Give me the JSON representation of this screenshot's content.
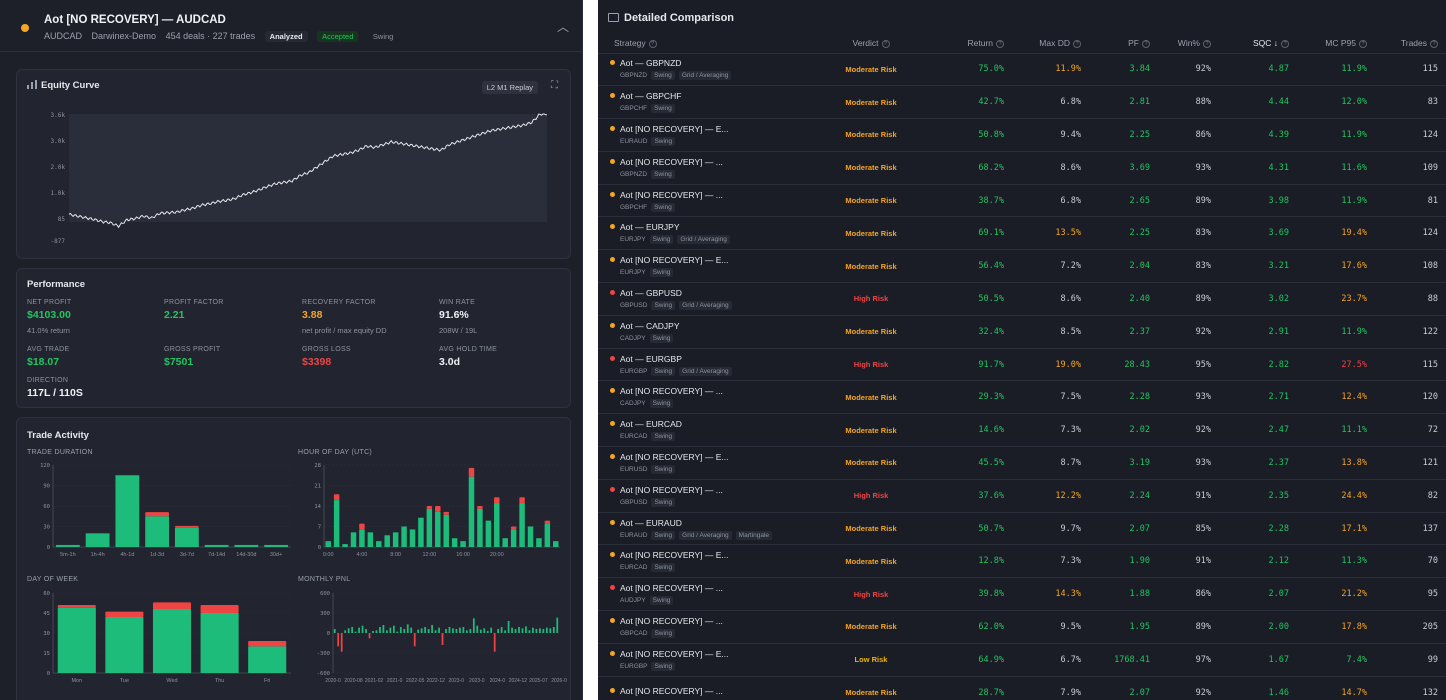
{
  "header": {
    "title": "Aot [NO RECOVERY] — AUDCAD",
    "symbol": "AUDCAD",
    "broker": "Darwinex-Demo",
    "deals_trades": "454 deals · 227 trades",
    "badge_analyzed": "Analyzed",
    "badge_accepted": "Accepted",
    "badge_style": "Swing",
    "status_color": "#f5a524"
  },
  "equity": {
    "title": "Equity Curve",
    "replay_label": "L2 M1 Replay",
    "y_ticks": [
      "3.6k",
      "3.0k",
      "2.0k",
      "1.0k",
      "85",
      "-877"
    ],
    "series": [
      0,
      -60,
      -120,
      -180,
      -260,
      -300,
      -420,
      -200,
      -150,
      -60,
      -130,
      40,
      60,
      80,
      160,
      220,
      330,
      380,
      460,
      500,
      560,
      700,
      780,
      880,
      1000,
      1100,
      1150,
      1200,
      1400,
      1500,
      1700,
      1900,
      2100,
      2150,
      2200,
      2300,
      2450,
      2400,
      2500,
      2600,
      2550,
      2500,
      2450,
      2400,
      2350,
      2300,
      2500,
      2600,
      2700,
      2800,
      2900,
      3000,
      3050,
      3100,
      3150,
      3200,
      3300,
      3600
    ]
  },
  "performance": {
    "title": "Performance",
    "net_profit": {
      "label": "NET PROFIT",
      "value": "$4103.00",
      "sub": "41.0% return"
    },
    "profit_factor": {
      "label": "PROFIT FACTOR",
      "value": "2.21"
    },
    "recovery_factor": {
      "label": "RECOVERY FACTOR",
      "value": "3.88",
      "sub": "net profit / max equity DD"
    },
    "win_rate": {
      "label": "WIN RATE",
      "value": "91.6%",
      "sub": "208W / 19L"
    },
    "avg_trade": {
      "label": "AVG TRADE",
      "value": "$18.07"
    },
    "gross_profit": {
      "label": "GROSS PROFIT",
      "value": "$7501"
    },
    "gross_loss": {
      "label": "GROSS LOSS",
      "value": "$3398"
    },
    "avg_hold": {
      "label": "AVG HOLD TIME",
      "value": "3.0d"
    },
    "direction": {
      "label": "DIRECTION",
      "value": "117L / 110S"
    }
  },
  "activity": {
    "title": "Trade Activity",
    "duration": {
      "title": "TRADE DURATION",
      "y_ticks": [
        "120",
        "90",
        "60",
        "30",
        "0"
      ],
      "ymax": 120,
      "categories": [
        "5m-1h",
        "1h-4h",
        "4h-1d",
        "1d-3d",
        "3d-7d",
        "7d-14d",
        "14d-30d",
        "30d+"
      ],
      "wins": [
        3,
        20,
        105,
        45,
        28,
        3,
        3,
        3
      ],
      "losses": [
        0,
        0,
        0,
        6,
        3,
        0,
        0,
        0
      ]
    },
    "hour": {
      "title": "HOUR OF DAY (UTC)",
      "y_ticks": [
        "28",
        "21",
        "14",
        "7",
        "0"
      ],
      "ymax": 28,
      "x_labels": [
        "0:00",
        "4:00",
        "8:00",
        "12:00",
        "16:00",
        "20:00"
      ],
      "wins": [
        2,
        16,
        1,
        5,
        6,
        5,
        2,
        4,
        5,
        7,
        6,
        10,
        13,
        12,
        11,
        3,
        2,
        24,
        13,
        9,
        15,
        3,
        6,
        15,
        7,
        3,
        8,
        2
      ],
      "losses": [
        0,
        2,
        0,
        0,
        2,
        0,
        0,
        0,
        0,
        0,
        0,
        0,
        1,
        2,
        1,
        0,
        0,
        3,
        1,
        0,
        2,
        0,
        1,
        2,
        0,
        0,
        1,
        0
      ]
    },
    "day": {
      "title": "DAY OF WEEK",
      "y_ticks": [
        "60",
        "45",
        "30",
        "15",
        "0"
      ],
      "ymax": 60,
      "categories": [
        "Mon",
        "Tue",
        "Wed",
        "Thu",
        "Fri"
      ],
      "wins": [
        49,
        42,
        48,
        45,
        20
      ],
      "losses": [
        2,
        4,
        5,
        6,
        4
      ]
    },
    "monthly": {
      "title": "MONTHLY PNL",
      "y_ticks": [
        "600",
        "300",
        "0",
        "-300",
        "-600"
      ],
      "x_labels": [
        "2020-0",
        "2020-08",
        "2021-02",
        "2021-0",
        "2022-05",
        "2022-12",
        "2023-0",
        "2023-0",
        "2024-0",
        "2024-12",
        "2025-07",
        "2026-0"
      ],
      "values": [
        60,
        -200,
        -280,
        40,
        70,
        90,
        20,
        80,
        110,
        60,
        -80,
        30,
        40,
        90,
        120,
        40,
        80,
        110,
        20,
        90,
        60,
        130,
        80,
        -200,
        50,
        70,
        90,
        60,
        120,
        40,
        80,
        -180,
        60,
        90,
        70,
        60,
        80,
        90,
        40,
        60,
        220,
        110,
        50,
        70,
        30,
        80,
        -280,
        60,
        90,
        40,
        180,
        80,
        60,
        90,
        70,
        100,
        40,
        80,
        60,
        70,
        60,
        80,
        70,
        90,
        230
      ]
    },
    "win_color": "#1ebc7b",
    "loss_color": "#ef4444"
  },
  "comparison": {
    "title": "Detailed Comparison",
    "headers": [
      "Strategy",
      "Verdict",
      "Return",
      "Max DD",
      "PF",
      "Win%",
      "SQC ↓",
      "MC P95",
      "Trades"
    ],
    "rows": [
      {
        "name": "Aot — GBPNZD",
        "sym": "GBPNZD",
        "tags": [
          "Swing",
          "Grid / Averaging"
        ],
        "dot": "#f5a524",
        "verdict": "Moderate Risk",
        "vcolor": "#f5a524",
        "ret": "75.0%",
        "dd": "11.9%",
        "ddc": "#f5a524",
        "pf": "3.84",
        "win": "92%",
        "sqc": "4.87",
        "mc": "11.9%",
        "mcc": "#22c55e",
        "trades": "115"
      },
      {
        "name": "Aot — GBPCHF",
        "sym": "GBPCHF",
        "tags": [
          "Swing"
        ],
        "dot": "#f5a524",
        "verdict": "Moderate Risk",
        "vcolor": "#f5a524",
        "ret": "42.7%",
        "dd": "6.8%",
        "ddc": "#c8ccd6",
        "pf": "2.81",
        "win": "88%",
        "sqc": "4.44",
        "mc": "12.0%",
        "mcc": "#22c55e",
        "trades": "83"
      },
      {
        "name": "Aot [NO RECOVERY] — E...",
        "sym": "EURAUD",
        "tags": [
          "Swing"
        ],
        "dot": "#f5a524",
        "verdict": "Moderate Risk",
        "vcolor": "#f5a524",
        "ret": "50.8%",
        "dd": "9.4%",
        "ddc": "#c8ccd6",
        "pf": "2.25",
        "win": "86%",
        "sqc": "4.39",
        "mc": "11.9%",
        "mcc": "#22c55e",
        "trades": "124"
      },
      {
        "name": "Aot [NO RECOVERY] — ...",
        "sym": "GBPNZD",
        "tags": [
          "Swing"
        ],
        "dot": "#f5a524",
        "verdict": "Moderate Risk",
        "vcolor": "#f5a524",
        "ret": "68.2%",
        "dd": "8.6%",
        "ddc": "#c8ccd6",
        "pf": "3.69",
        "win": "93%",
        "sqc": "4.31",
        "mc": "11.6%",
        "mcc": "#22c55e",
        "trades": "109"
      },
      {
        "name": "Aot [NO RECOVERY] — ...",
        "sym": "GBPCHF",
        "tags": [
          "Swing"
        ],
        "dot": "#f5a524",
        "verdict": "Moderate Risk",
        "vcolor": "#f5a524",
        "ret": "38.7%",
        "dd": "6.8%",
        "ddc": "#c8ccd6",
        "pf": "2.65",
        "win": "89%",
        "sqc": "3.98",
        "mc": "11.9%",
        "mcc": "#22c55e",
        "trades": "81"
      },
      {
        "name": "Aot — EURJPY",
        "sym": "EURJPY",
        "tags": [
          "Swing",
          "Grid / Averaging"
        ],
        "dot": "#f5a524",
        "verdict": "Moderate Risk",
        "vcolor": "#f5a524",
        "ret": "69.1%",
        "dd": "13.5%",
        "ddc": "#f5a524",
        "pf": "2.25",
        "win": "83%",
        "sqc": "3.69",
        "mc": "19.4%",
        "mcc": "#f5a524",
        "trades": "124"
      },
      {
        "name": "Aot [NO RECOVERY] — E...",
        "sym": "EURJPY",
        "tags": [
          "Swing"
        ],
        "dot": "#f5a524",
        "verdict": "Moderate Risk",
        "vcolor": "#f5a524",
        "ret": "56.4%",
        "dd": "7.2%",
        "ddc": "#c8ccd6",
        "pf": "2.04",
        "win": "83%",
        "sqc": "3.21",
        "mc": "17.6%",
        "mcc": "#f5a524",
        "trades": "108"
      },
      {
        "name": "Aot — GBPUSD",
        "sym": "GBPUSD",
        "tags": [
          "Swing",
          "Grid / Averaging"
        ],
        "dot": "#ef4444",
        "verdict": "High Risk",
        "vcolor": "#ef4444",
        "ret": "50.5%",
        "dd": "8.6%",
        "ddc": "#c8ccd6",
        "pf": "2.40",
        "win": "89%",
        "sqc": "3.02",
        "mc": "23.7%",
        "mcc": "#f5a524",
        "trades": "88"
      },
      {
        "name": "Aot — CADJPY",
        "sym": "CADJPY",
        "tags": [
          "Swing"
        ],
        "dot": "#f5a524",
        "verdict": "Moderate Risk",
        "vcolor": "#f5a524",
        "ret": "32.4%",
        "dd": "8.5%",
        "ddc": "#c8ccd6",
        "pf": "2.37",
        "win": "92%",
        "sqc": "2.91",
        "mc": "11.9%",
        "mcc": "#22c55e",
        "trades": "122"
      },
      {
        "name": "Aot — EURGBP",
        "sym": "EURGBP",
        "tags": [
          "Swing",
          "Grid / Averaging"
        ],
        "dot": "#ef4444",
        "verdict": "High Risk",
        "vcolor": "#ef4444",
        "ret": "91.7%",
        "dd": "19.0%",
        "ddc": "#f5a524",
        "pf": "28.43",
        "win": "95%",
        "sqc": "2.82",
        "mc": "27.5%",
        "mcc": "#ef4444",
        "trades": "115"
      },
      {
        "name": "Aot [NO RECOVERY] — ...",
        "sym": "CADJPY",
        "tags": [
          "Swing"
        ],
        "dot": "#f5a524",
        "verdict": "Moderate Risk",
        "vcolor": "#f5a524",
        "ret": "29.3%",
        "dd": "7.5%",
        "ddc": "#c8ccd6",
        "pf": "2.28",
        "win": "93%",
        "sqc": "2.71",
        "mc": "12.4%",
        "mcc": "#f5a524",
        "trades": "120"
      },
      {
        "name": "Aot — EURCAD",
        "sym": "EURCAD",
        "tags": [
          "Swing"
        ],
        "dot": "#f5a524",
        "verdict": "Moderate Risk",
        "vcolor": "#f5a524",
        "ret": "14.6%",
        "dd": "7.3%",
        "ddc": "#c8ccd6",
        "pf": "2.02",
        "win": "92%",
        "sqc": "2.47",
        "mc": "11.1%",
        "mcc": "#22c55e",
        "trades": "72"
      },
      {
        "name": "Aot [NO RECOVERY] — E...",
        "sym": "EURUSD",
        "tags": [
          "Swing"
        ],
        "dot": "#f5a524",
        "verdict": "Moderate Risk",
        "vcolor": "#f5a524",
        "ret": "45.5%",
        "dd": "8.7%",
        "ddc": "#c8ccd6",
        "pf": "3.19",
        "win": "93%",
        "sqc": "2.37",
        "mc": "13.8%",
        "mcc": "#f5a524",
        "trades": "121"
      },
      {
        "name": "Aot [NO RECOVERY] — ...",
        "sym": "GBPUSD",
        "tags": [
          "Swing"
        ],
        "dot": "#ef4444",
        "verdict": "High Risk",
        "vcolor": "#ef4444",
        "ret": "37.6%",
        "dd": "12.2%",
        "ddc": "#f5a524",
        "pf": "2.24",
        "win": "91%",
        "sqc": "2.35",
        "mc": "24.4%",
        "mcc": "#f5a524",
        "trades": "82"
      },
      {
        "name": "Aot — EURAUD",
        "sym": "EURAUD",
        "tags": [
          "Swing",
          "Grid / Averaging",
          "Martingale"
        ],
        "dot": "#f5a524",
        "verdict": "Moderate Risk",
        "vcolor": "#f5a524",
        "ret": "50.7%",
        "dd": "9.7%",
        "ddc": "#c8ccd6",
        "pf": "2.07",
        "win": "85%",
        "sqc": "2.28",
        "mc": "17.1%",
        "mcc": "#f5a524",
        "trades": "137"
      },
      {
        "name": "Aot [NO RECOVERY] — E...",
        "sym": "EURCAD",
        "tags": [
          "Swing"
        ],
        "dot": "#f5a524",
        "verdict": "Moderate Risk",
        "vcolor": "#f5a524",
        "ret": "12.8%",
        "dd": "7.3%",
        "ddc": "#c8ccd6",
        "pf": "1.90",
        "win": "91%",
        "sqc": "2.12",
        "mc": "11.3%",
        "mcc": "#22c55e",
        "trades": "70"
      },
      {
        "name": "Aot [NO RECOVERY] — ...",
        "sym": "AUDJPY",
        "tags": [
          "Swing"
        ],
        "dot": "#ef4444",
        "verdict": "High Risk",
        "vcolor": "#ef4444",
        "ret": "39.8%",
        "dd": "14.3%",
        "ddc": "#f5a524",
        "pf": "1.88",
        "win": "86%",
        "sqc": "2.07",
        "mc": "21.2%",
        "mcc": "#f5a524",
        "trades": "95"
      },
      {
        "name": "Aot [NO RECOVERY] — ...",
        "sym": "GBPCAD",
        "tags": [
          "Swing"
        ],
        "dot": "#f5a524",
        "verdict": "Moderate Risk",
        "vcolor": "#f5a524",
        "ret": "62.0%",
        "dd": "9.5%",
        "ddc": "#c8ccd6",
        "pf": "1.95",
        "win": "89%",
        "sqc": "2.00",
        "mc": "17.8%",
        "mcc": "#f5a524",
        "trades": "205"
      },
      {
        "name": "Aot [NO RECOVERY] — E...",
        "sym": "EURGBP",
        "tags": [
          "Swing"
        ],
        "dot": "#f5a524",
        "verdict": "Low Risk",
        "vcolor": "#eab308",
        "ret": "64.9%",
        "dd": "6.7%",
        "ddc": "#c8ccd6",
        "pf": "1768.41",
        "win": "97%",
        "sqc": "1.67",
        "mc": "7.4%",
        "mcc": "#22c55e",
        "trades": "99"
      },
      {
        "name": "Aot [NO RECOVERY] — ...",
        "sym": "",
        "tags": [],
        "dot": "#f5a524",
        "verdict": "Moderate Risk",
        "vcolor": "#f5a524",
        "ret": "28.7%",
        "dd": "7.9%",
        "ddc": "#c8ccd6",
        "pf": "2.07",
        "win": "92%",
        "sqc": "1.46",
        "mc": "14.7%",
        "mcc": "#f5a524",
        "trades": "132"
      }
    ]
  }
}
